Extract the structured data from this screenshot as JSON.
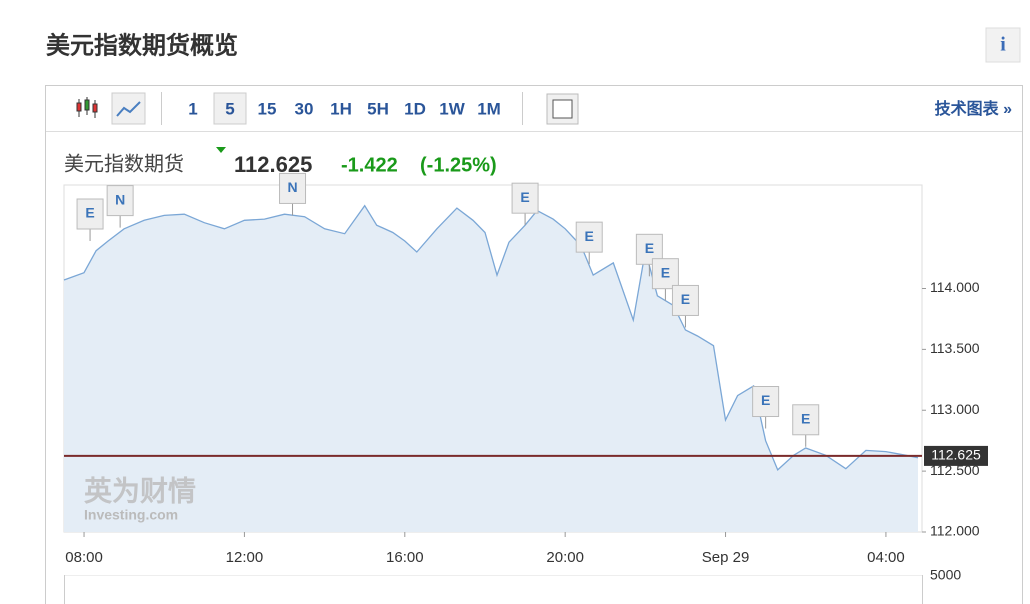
{
  "header": {
    "title": "美元指数期货概览",
    "info": "i"
  },
  "toolbar": {
    "intervals": [
      "1",
      "5",
      "15",
      "30",
      "1H",
      "5H",
      "1D",
      "1W",
      "1M"
    ],
    "selected": "5",
    "link": "技术图表 »"
  },
  "quote": {
    "name": "美元指数期货",
    "last": 112.625,
    "change": "-1.422",
    "change_pct": "(-1.25%)"
  },
  "watermark": {
    "cn": "英为财情",
    "en": "Investing.com"
  },
  "chart_data": {
    "type": "line",
    "x": [
      7.5,
      8.0,
      8.3,
      8.6,
      9.0,
      9.5,
      10.0,
      10.5,
      11.0,
      11.5,
      12.0,
      12.5,
      13.0,
      13.5,
      14.0,
      14.5,
      15.0,
      15.3,
      15.7,
      16.0,
      16.3,
      16.8,
      17.3,
      17.7,
      18.0,
      18.3,
      18.6,
      19.0,
      19.3,
      19.7,
      20.0,
      20.4,
      20.7,
      21.2,
      21.7,
      22.0,
      22.3,
      22.7,
      23.0,
      23.3,
      23.7,
      24.0,
      24.3,
      24.7,
      25.0,
      25.3,
      25.7,
      26.0,
      26.5,
      27.0,
      27.5,
      28.0,
      28.5,
      28.8
    ],
    "series": [
      {
        "name": "美元指数期货",
        "color": "#7ba7d6",
        "values": [
          114.07,
          114.13,
          114.31,
          114.39,
          114.49,
          114.56,
          114.6,
          114.61,
          114.54,
          114.49,
          114.56,
          114.57,
          114.61,
          114.59,
          114.49,
          114.45,
          114.68,
          114.52,
          114.46,
          114.39,
          114.3,
          114.49,
          114.66,
          114.56,
          114.46,
          114.11,
          114.38,
          114.52,
          114.64,
          114.57,
          114.49,
          114.35,
          114.11,
          114.21,
          113.74,
          114.31,
          113.94,
          113.86,
          113.66,
          113.61,
          113.53,
          112.92,
          113.12,
          113.2,
          112.75,
          112.51,
          112.63,
          112.69,
          112.63,
          112.52,
          112.67,
          112.66,
          112.63,
          112.61
        ]
      }
    ],
    "xlim": [
      7.5,
      28.9
    ],
    "xticks": [
      {
        "value": 8,
        "label": "08:00"
      },
      {
        "value": 12,
        "label": "12:00"
      },
      {
        "value": 16,
        "label": "16:00"
      },
      {
        "value": 20,
        "label": "20:00"
      },
      {
        "value": 24,
        "label": "Sep 29"
      },
      {
        "value": 28,
        "label": "04:00"
      }
    ],
    "ylim": [
      112.0,
      114.85
    ],
    "yticks": [
      {
        "value": 114,
        "label": "114.000"
      },
      {
        "value": 113.5,
        "label": "113.500"
      },
      {
        "value": 113,
        "label": "113.000"
      },
      {
        "value": 112.5,
        "label": "112.500"
      },
      {
        "value": 112,
        "label": "112.000"
      }
    ],
    "volume_yticks": [
      5000
    ],
    "events": [
      {
        "label": "E",
        "x": 8.15,
        "value": 114.39
      },
      {
        "label": "N",
        "x": 8.9,
        "value": 114.5
      },
      {
        "label": "N",
        "x": 13.2,
        "value": 114.6
      },
      {
        "label": "E",
        "x": 19.0,
        "value": 114.52
      },
      {
        "label": "E",
        "x": 20.6,
        "value": 114.2
      },
      {
        "label": "E",
        "x": 22.1,
        "value": 114.1
      },
      {
        "label": "E",
        "x": 22.5,
        "value": 113.9
      },
      {
        "label": "E",
        "x": 23.0,
        "value": 113.68
      },
      {
        "label": "E",
        "x": 25.0,
        "value": 112.85
      },
      {
        "label": "E",
        "x": 26.0,
        "value": 112.7
      }
    ]
  }
}
